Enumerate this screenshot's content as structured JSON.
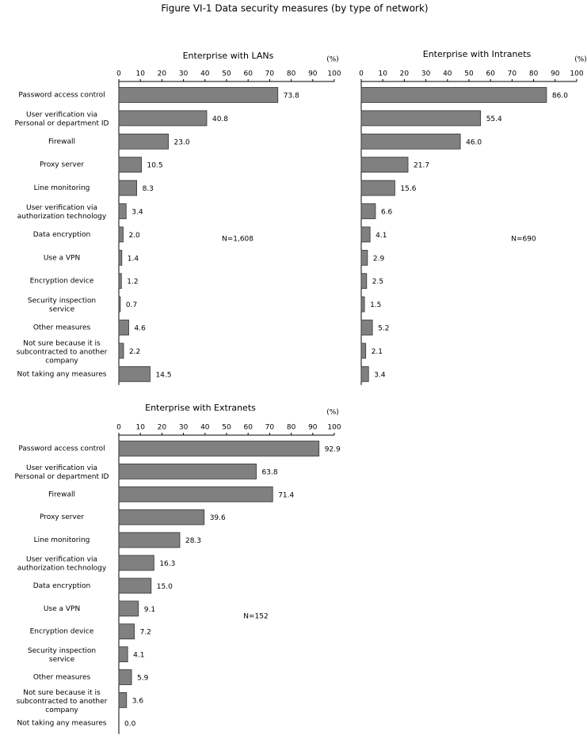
{
  "title": "Figure VI-1 Data security measures (by type of network)",
  "chart_data": [
    {
      "type": "bar",
      "title": "Enterprise with LANs",
      "unit": "(%)",
      "annotation": "N=1,608",
      "categories": [
        "Password access control",
        "User verification via Personal or department ID",
        "Firewall",
        "Proxy server",
        "Line monitoring",
        "User verification via authorization technology",
        "Data encryption",
        "Use a VPN",
        "Encryption device",
        "Security inspection service",
        "Other measures",
        "Not sure because it is subcontracted to another company",
        "Not taking any measures"
      ],
      "values": [
        73.8,
        40.8,
        23.0,
        10.5,
        8.3,
        3.4,
        2.0,
        1.4,
        1.2,
        0.7,
        4.6,
        2.2,
        14.5
      ],
      "value_labels": [
        "73.8",
        "40.8",
        "23.0",
        "10.5",
        "8.3",
        "3.4",
        "2.0",
        "1.4",
        "1.2",
        "0.7",
        "4.6",
        "2.2",
        "14.5"
      ],
      "color": "#808080",
      "xlim": [
        0,
        100
      ],
      "xticks": [
        0,
        10,
        20,
        30,
        40,
        50,
        60,
        70,
        80,
        90,
        100
      ]
    },
    {
      "type": "bar",
      "title": "Enterprise with Intranets",
      "unit": "(%)",
      "annotation": "N=690",
      "values": [
        86.0,
        55.4,
        46.0,
        21.7,
        15.6,
        6.6,
        4.1,
        2.9,
        2.5,
        1.5,
        5.2,
        2.1,
        3.4
      ],
      "value_labels": [
        "86.0",
        "55.4",
        "46.0",
        "21.7",
        "15.6",
        "6.6",
        "4.1",
        "2.9",
        "2.5",
        "1.5",
        "5.2",
        "2.1",
        "3.4"
      ],
      "color": "#808080",
      "xlim": [
        0,
        100
      ],
      "xticks": [
        0,
        10,
        20,
        30,
        40,
        50,
        60,
        70,
        80,
        90,
        100
      ]
    },
    {
      "type": "bar",
      "title": "Enterprise with Extranets",
      "unit": "(%)",
      "annotation": "N=152",
      "categories": [
        "Password access control",
        "User verification via Personal or department ID",
        "Firewall",
        "Proxy server",
        "Line monitoring",
        "User verification via authorization technology",
        "Data encryption",
        "Use a VPN",
        "Encryption device",
        "Security inspection service",
        "Other measures",
        "Not sure because it is subcontracted to another company",
        "Not taking any measures"
      ],
      "values": [
        92.9,
        63.8,
        71.4,
        39.6,
        28.3,
        16.3,
        15.0,
        9.1,
        7.2,
        4.1,
        5.9,
        3.6,
        0.0
      ],
      "value_labels": [
        "92.9",
        "63.8",
        "71.4",
        "39.6",
        "28.3",
        "16.3",
        "15.0",
        "9.1",
        "7.2",
        "4.1",
        "5.9",
        "3.6",
        "0.0"
      ],
      "color": "#808080",
      "xlim": [
        0,
        100
      ],
      "xticks": [
        0,
        10,
        20,
        30,
        40,
        50,
        60,
        70,
        80,
        90,
        100
      ]
    }
  ]
}
